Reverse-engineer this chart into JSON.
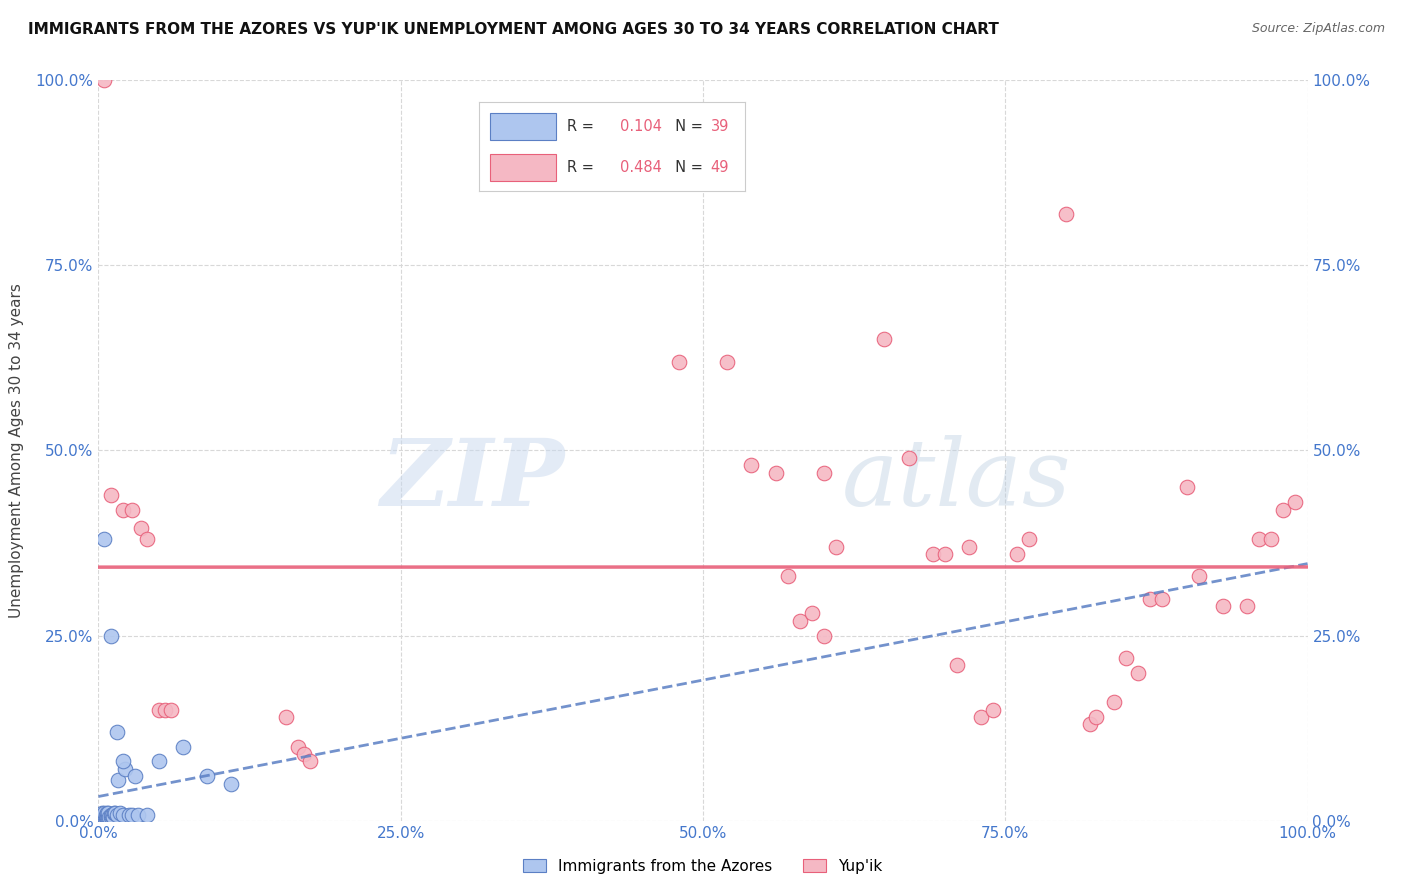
{
  "title": "IMMIGRANTS FROM THE AZORES VS YUP'IK UNEMPLOYMENT AMONG AGES 30 TO 34 YEARS CORRELATION CHART",
  "source": "Source: ZipAtlas.com",
  "ylabel": "Unemployment Among Ages 30 to 34 years",
  "xlim": [
    0,
    1.0
  ],
  "ylim": [
    0,
    1.0
  ],
  "xticks": [
    0.0,
    0.25,
    0.5,
    0.75,
    1.0
  ],
  "xticklabels": [
    "0.0%",
    "25.0%",
    "50.0%",
    "75.0%",
    "100.0%"
  ],
  "yticks": [
    0.0,
    0.25,
    0.5,
    0.75,
    1.0
  ],
  "yticklabels": [
    "0.0%",
    "25.0%",
    "50.0%",
    "75.0%",
    "100.0%"
  ],
  "blue_R": 0.104,
  "blue_N": 39,
  "pink_R": 0.484,
  "pink_N": 49,
  "blue_label": "Immigrants from the Azores",
  "pink_label": "Yup'ik",
  "blue_color": "#aec6ef",
  "pink_color": "#f5b8c4",
  "blue_line_color": "#5b7fc4",
  "pink_line_color": "#e8607a",
  "blue_scatter": [
    [
      0.002,
      0.005
    ],
    [
      0.003,
      0.005
    ],
    [
      0.003,
      0.01
    ],
    [
      0.004,
      0.005
    ],
    [
      0.004,
      0.008
    ],
    [
      0.005,
      0.005
    ],
    [
      0.005,
      0.008
    ],
    [
      0.005,
      0.01
    ],
    [
      0.006,
      0.005
    ],
    [
      0.006,
      0.008
    ],
    [
      0.007,
      0.005
    ],
    [
      0.007,
      0.01
    ],
    [
      0.008,
      0.005
    ],
    [
      0.008,
      0.01
    ],
    [
      0.009,
      0.005
    ],
    [
      0.01,
      0.005
    ],
    [
      0.01,
      0.008
    ],
    [
      0.011,
      0.008
    ],
    [
      0.012,
      0.005
    ],
    [
      0.013,
      0.01
    ],
    [
      0.014,
      0.01
    ],
    [
      0.015,
      0.008
    ],
    [
      0.016,
      0.055
    ],
    [
      0.018,
      0.01
    ],
    [
      0.02,
      0.008
    ],
    [
      0.022,
      0.07
    ],
    [
      0.025,
      0.008
    ],
    [
      0.028,
      0.008
    ],
    [
      0.03,
      0.06
    ],
    [
      0.033,
      0.008
    ],
    [
      0.04,
      0.008
    ],
    [
      0.005,
      0.38
    ],
    [
      0.01,
      0.25
    ],
    [
      0.015,
      0.12
    ],
    [
      0.02,
      0.08
    ],
    [
      0.05,
      0.08
    ],
    [
      0.07,
      0.1
    ],
    [
      0.09,
      0.06
    ],
    [
      0.11,
      0.05
    ]
  ],
  "pink_scatter": [
    [
      0.005,
      1.0
    ],
    [
      0.01,
      0.44
    ],
    [
      0.02,
      0.42
    ],
    [
      0.028,
      0.42
    ],
    [
      0.035,
      0.395
    ],
    [
      0.04,
      0.38
    ],
    [
      0.05,
      0.15
    ],
    [
      0.055,
      0.15
    ],
    [
      0.06,
      0.15
    ],
    [
      0.155,
      0.14
    ],
    [
      0.165,
      0.1
    ],
    [
      0.17,
      0.09
    ],
    [
      0.175,
      0.08
    ],
    [
      0.48,
      0.62
    ],
    [
      0.52,
      0.62
    ],
    [
      0.54,
      0.48
    ],
    [
      0.56,
      0.47
    ],
    [
      0.57,
      0.33
    ],
    [
      0.58,
      0.27
    ],
    [
      0.59,
      0.28
    ],
    [
      0.6,
      0.47
    ],
    [
      0.6,
      0.25
    ],
    [
      0.61,
      0.37
    ],
    [
      0.65,
      0.65
    ],
    [
      0.67,
      0.49
    ],
    [
      0.69,
      0.36
    ],
    [
      0.7,
      0.36
    ],
    [
      0.71,
      0.21
    ],
    [
      0.72,
      0.37
    ],
    [
      0.73,
      0.14
    ],
    [
      0.74,
      0.15
    ],
    [
      0.76,
      0.36
    ],
    [
      0.77,
      0.38
    ],
    [
      0.8,
      0.82
    ],
    [
      0.82,
      0.13
    ],
    [
      0.825,
      0.14
    ],
    [
      0.84,
      0.16
    ],
    [
      0.85,
      0.22
    ],
    [
      0.86,
      0.2
    ],
    [
      0.87,
      0.3
    ],
    [
      0.88,
      0.3
    ],
    [
      0.9,
      0.45
    ],
    [
      0.91,
      0.33
    ],
    [
      0.93,
      0.29
    ],
    [
      0.95,
      0.29
    ],
    [
      0.96,
      0.38
    ],
    [
      0.97,
      0.38
    ],
    [
      0.98,
      0.42
    ],
    [
      0.99,
      0.43
    ]
  ],
  "watermark_zip": "ZIP",
  "watermark_atlas": "atlas",
  "background_color": "#ffffff",
  "grid_color": "#d8d8d8"
}
